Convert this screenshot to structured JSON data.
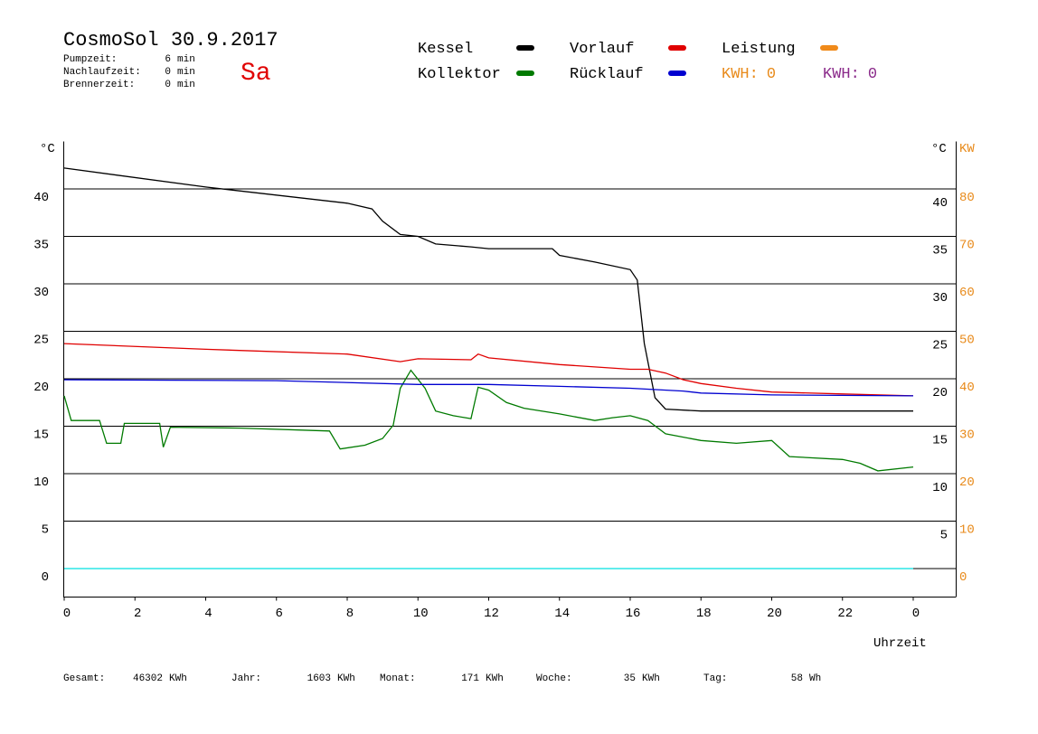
{
  "header": {
    "title": "CosmoSol 30.9.2017",
    "day": "Sa",
    "stats": [
      {
        "label": "Pumpzeit:",
        "value": 6,
        "unit": "min"
      },
      {
        "label": "Nachlaufzeit:",
        "value": 0,
        "unit": "min"
      },
      {
        "label": "Brennerzeit:",
        "value": 0,
        "unit": "min"
      }
    ],
    "kwh": [
      {
        "label": "KWH:",
        "value": 0,
        "color": "#e88a1a"
      },
      {
        "label": "KWH:",
        "value": 0,
        "color": "#8a2a8a"
      }
    ]
  },
  "chart_data": {
    "type": "line",
    "y_unit": "°C",
    "y2_unit_left": "°C",
    "y2_unit": "KW",
    "x_label": "Uhrzeit",
    "xlim": [
      0,
      25.2
    ],
    "xticks": [
      0,
      2,
      4,
      6,
      8,
      10,
      12,
      14,
      16,
      18,
      20,
      22,
      {
        "value": 24,
        "label": "0"
      }
    ],
    "ylim": [
      -3,
      45
    ],
    "yticks": [
      0,
      5,
      10,
      15,
      20,
      25,
      30,
      35,
      40
    ],
    "y2lim": [
      -6,
      90
    ],
    "y2ticks": [
      0,
      10,
      20,
      30,
      40,
      50,
      60,
      70,
      80
    ],
    "grid": true,
    "series": [
      {
        "name": "Kessel",
        "color": "#000000",
        "x": [
          0,
          4,
          8,
          8.7,
          9,
          9.5,
          10,
          10.5,
          11.5,
          12,
          13.8,
          14,
          15,
          16,
          16.2,
          16.4,
          16.7,
          17,
          18,
          24
        ],
        "values": [
          42.2,
          40.2,
          38.5,
          37.9,
          36.6,
          35.2,
          35.0,
          34.2,
          33.9,
          33.7,
          33.7,
          33.0,
          32.3,
          31.5,
          30.4,
          23.7,
          18.0,
          16.8,
          16.6,
          16.6
        ]
      },
      {
        "name": "Vorlauf",
        "color": "#e00000",
        "x": [
          0,
          4,
          8,
          9.5,
          10,
          11.5,
          11.7,
          12,
          14,
          16,
          16.5,
          17,
          17.5,
          18,
          19,
          20,
          22,
          24
        ],
        "values": [
          23.7,
          23.1,
          22.6,
          21.8,
          22.1,
          22.0,
          22.6,
          22.2,
          21.5,
          21.0,
          21.0,
          20.6,
          19.9,
          19.5,
          19.0,
          18.6,
          18.4,
          18.2
        ]
      },
      {
        "name": "Leistung",
        "color": "#f08a1a",
        "axis": "y2",
        "x": [],
        "values": []
      },
      {
        "name": "Kollektor",
        "color": "#007a00",
        "x": [
          0,
          0.2,
          1,
          1.2,
          1.6,
          1.7,
          2.7,
          2.8,
          3,
          5,
          7.5,
          7.8,
          8.5,
          9,
          9.3,
          9.5,
          9.8,
          10.2,
          10.5,
          11,
          11.5,
          11.7,
          12,
          12.5,
          13,
          14,
          15,
          15.5,
          16,
          16.5,
          17,
          18,
          19,
          20,
          20.5,
          22,
          22.5,
          23,
          24
        ],
        "values": [
          18.2,
          15.6,
          15.6,
          13.2,
          13.2,
          15.3,
          15.3,
          12.8,
          14.9,
          14.8,
          14.5,
          12.6,
          13.0,
          13.7,
          15.1,
          19.0,
          20.9,
          19.0,
          16.6,
          16.1,
          15.8,
          19.1,
          18.8,
          17.5,
          16.9,
          16.3,
          15.6,
          15.9,
          16.1,
          15.6,
          14.2,
          13.5,
          13.2,
          13.5,
          11.8,
          11.5,
          11.1,
          10.3,
          10.7
        ]
      },
      {
        "name": "Rücklauf",
        "color": "#0000d0",
        "x": [
          0,
          6,
          10,
          12,
          14,
          16,
          17.5,
          18,
          20,
          24
        ],
        "values": [
          19.9,
          19.8,
          19.4,
          19.4,
          19.2,
          19.0,
          18.7,
          18.5,
          18.3,
          18.2
        ]
      },
      {
        "color": "#00e0e0",
        "x": [
          0,
          24
        ],
        "values": [
          0,
          0
        ]
      }
    ]
  },
  "footer": [
    {
      "label": "Gesamt:",
      "value": 46302,
      "unit": "KWh"
    },
    {
      "label": "Jahr:",
      "value": 1603,
      "unit": "KWh"
    },
    {
      "label": "Monat:",
      "value": 171,
      "unit": "KWh"
    },
    {
      "label": "Woche:",
      "value": 35,
      "unit": "KWh"
    },
    {
      "label": "Tag:",
      "value": 58,
      "unit": "Wh"
    }
  ]
}
